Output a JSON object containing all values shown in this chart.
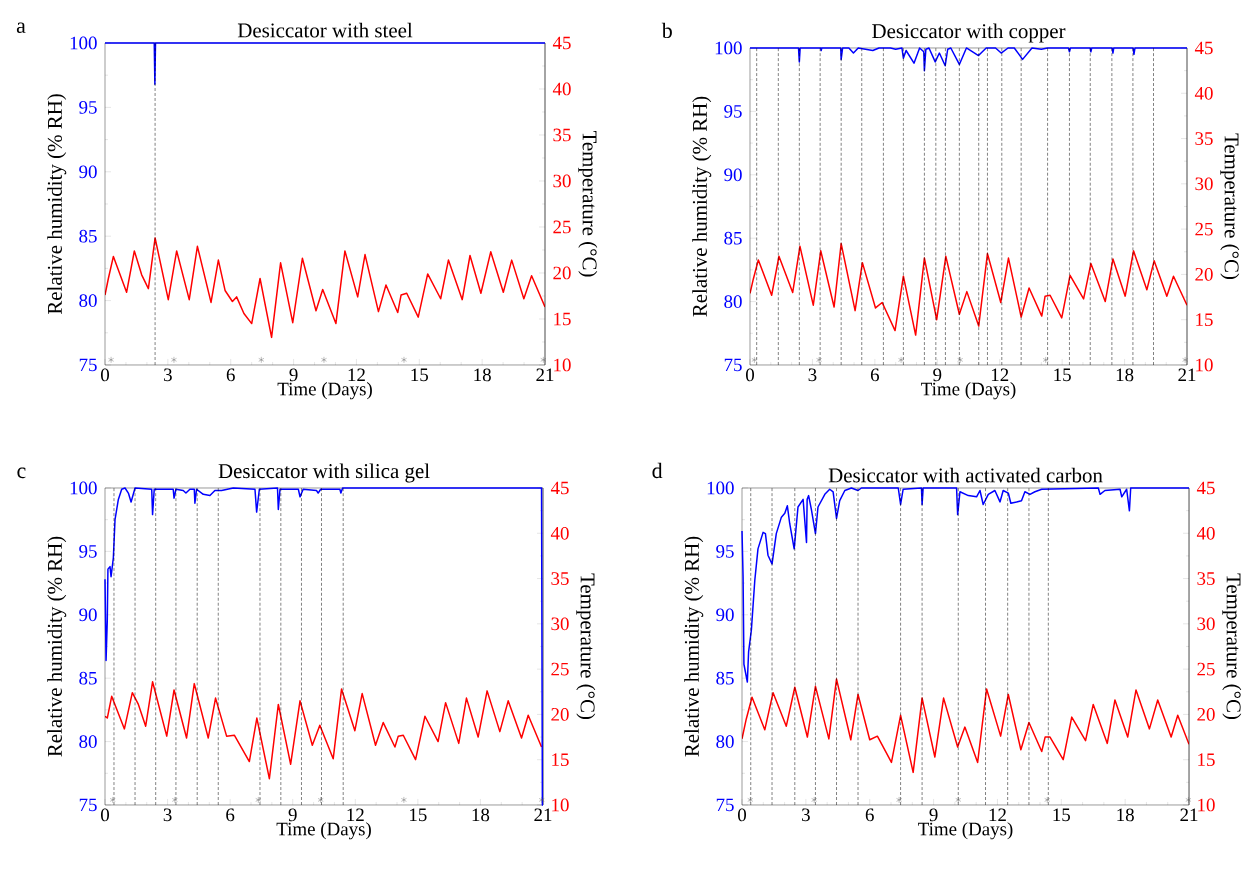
{
  "chart_data": [
    {
      "type": "line",
      "title": "Desiccator with steel",
      "xlabel": "Time (Days)",
      "ylabel": "Relative humidity (% RH)",
      "y2label": "Temperature (°C)",
      "annotations": [
        "a"
      ],
      "xlim": [
        0,
        21
      ],
      "xticks": [
        0,
        3,
        6,
        9,
        12,
        15,
        18,
        21
      ],
      "ylim": [
        75,
        100
      ],
      "yticks": [
        75,
        80,
        85,
        90,
        95,
        100
      ],
      "y2lim": [
        10,
        45
      ],
      "y2ticks": [
        10,
        15,
        20,
        25,
        30,
        35,
        40,
        45
      ],
      "series": [
        {
          "color": "#0000ff",
          "x": [
            0,
            2.35,
            2.38,
            2.41,
            21
          ],
          "values": [
            100,
            100,
            96.8,
            100,
            100
          ]
        },
        {
          "color": "#ff0000",
          "axis": "y2",
          "x": [
            0,
            0.16,
            0.4,
            1.03,
            1.4,
            1.75,
            2.07,
            2.39,
            3.02,
            3.42,
            4.02,
            4.41,
            5.06,
            5.41,
            5.73,
            6.08,
            6.28,
            6.63,
            7.0,
            7.4,
            7.95,
            8.38,
            8.96,
            9.42,
            10.07,
            10.39,
            11.02,
            11.45,
            12.06,
            12.41,
            13.05,
            13.41,
            13.97,
            14.13,
            14.4,
            14.95,
            15.4,
            16.02,
            16.39,
            17.05,
            17.42,
            17.94,
            18.41,
            19.01,
            19.41,
            19.99,
            20.36,
            21
          ],
          "values": [
            17.6,
            19.4,
            21.8,
            17.9,
            22.4,
            19.8,
            18.3,
            23.8,
            17.1,
            22.4,
            17.1,
            22.9,
            16.8,
            21.4,
            18.1,
            16.9,
            17.4,
            15.6,
            14.5,
            19.4,
            13.0,
            21.1,
            14.6,
            21.6,
            15.9,
            18.2,
            14.5,
            22.4,
            17.4,
            22.0,
            15.8,
            18.7,
            15.7,
            17.6,
            17.8,
            15.2,
            19.9,
            17.2,
            21.4,
            17.1,
            21.9,
            17.8,
            22.3,
            17.9,
            21.4,
            17.2,
            19.7,
            16.3
          ]
        },
        {
          "type": "scatter",
          "marker": "cross",
          "color": "#5b5b5b",
          "x": [
            0.29,
            3.29,
            7.46,
            10.45,
            14.27,
            20.92
          ],
          "values": [
            75.4,
            75.4,
            75.4,
            75.4,
            75.4,
            75.4
          ]
        }
      ],
      "ref_lines": [
        {
          "axis": "x",
          "value": 2.39,
          "color": "#000000",
          "line_style": "dashed"
        }
      ]
    },
    {
      "type": "line",
      "title": "Desiccator with copper",
      "xlabel": "Time (Days)",
      "ylabel": "Relative humidity (% RH)",
      "y2label": "Temperature (°C)",
      "annotations": [
        "b"
      ],
      "xlim": [
        0,
        21
      ],
      "xticks": [
        0,
        3,
        6,
        9,
        12,
        15,
        18,
        21
      ],
      "ylim": [
        75,
        100
      ],
      "yticks": [
        75,
        80,
        85,
        90,
        95,
        100
      ],
      "y2lim": [
        10,
        45
      ],
      "y2ticks": [
        10,
        15,
        20,
        25,
        30,
        35,
        40,
        45
      ],
      "series": [
        {
          "color": "#0000ff",
          "x": [
            0,
            2.33,
            2.37,
            2.41,
            3.4,
            3.42,
            3.45,
            4.36,
            4.38,
            4.45,
            4.75,
            4.97,
            5.2,
            5.9,
            6.2,
            6.75,
            7.0,
            7.3,
            7.37,
            7.5,
            7.88,
            8.15,
            8.35,
            8.38,
            8.45,
            8.6,
            8.9,
            9.1,
            9.38,
            9.5,
            9.65,
            10.06,
            10.4,
            10.98,
            11.35,
            11.8,
            12.07,
            12.4,
            12.7,
            13.1,
            13.55,
            14.0,
            14.3,
            15.3,
            15.35,
            15.4,
            16.35,
            16.38,
            16.42,
            17.4,
            17.44,
            17.48,
            18.41,
            18.45,
            18.5,
            21
          ],
          "values": [
            100,
            100,
            98.9,
            100,
            100,
            99.8,
            100,
            100,
            99.1,
            100,
            100,
            99.6,
            100,
            99.8,
            100,
            100,
            99.9,
            100,
            99.2,
            99.8,
            98.8,
            100,
            99.7,
            98.2,
            99.9,
            100,
            98.9,
            99.6,
            98.6,
            99.9,
            100,
            98.7,
            100,
            99.4,
            100,
            100,
            99.6,
            100,
            100,
            99.1,
            100,
            99.9,
            100,
            100,
            99.7,
            100,
            100,
            99.7,
            100,
            100,
            99.6,
            100,
            100,
            99.5,
            100,
            100
          ]
        },
        {
          "color": "#ff0000",
          "axis": "y2",
          "x": [
            0,
            0.16,
            0.4,
            1.04,
            1.39,
            2.05,
            2.4,
            3.04,
            3.4,
            4.04,
            4.38,
            5.05,
            5.4,
            6.03,
            6.35,
            6.97,
            7.37,
            7.96,
            8.38,
            8.97,
            9.41,
            10.06,
            10.42,
            10.99,
            11.41,
            12.05,
            12.42,
            13.03,
            13.41,
            14.02,
            14.18,
            14.42,
            14.98,
            15.38,
            16.03,
            16.38,
            17.07,
            17.44,
            18.03,
            18.43,
            19.07,
            19.42,
            20.03,
            20.35,
            21
          ],
          "values": [
            17.9,
            19.5,
            21.6,
            17.7,
            22.0,
            18.0,
            23.1,
            16.6,
            22.6,
            16.4,
            23.4,
            16.0,
            21.3,
            16.3,
            16.9,
            13.8,
            19.8,
            13.3,
            21.8,
            15.0,
            22.0,
            15.6,
            18.1,
            14.3,
            22.3,
            16.9,
            21.8,
            15.3,
            18.5,
            15.4,
            17.6,
            17.7,
            15.2,
            19.9,
            17.3,
            21.2,
            17.0,
            21.7,
            17.6,
            22.6,
            18.3,
            21.5,
            17.6,
            19.8,
            16.6
          ]
        },
        {
          "type": "scatter",
          "marker": "cross",
          "color": "#5b5b5b",
          "x": [
            0.21,
            3.32,
            7.26,
            10.1,
            14.21,
            20.91
          ],
          "values": [
            75.4,
            75.4,
            75.4,
            75.4,
            75.4,
            75.4
          ]
        }
      ],
      "ref_lines": [
        {
          "axis": "x",
          "value": 0.32,
          "color": "#000000",
          "line_style": "dashed"
        },
        {
          "axis": "x",
          "value": 1.36,
          "color": "#000000",
          "line_style": "dashed"
        },
        {
          "axis": "x",
          "value": 2.37,
          "color": "#000000",
          "line_style": "dashed"
        },
        {
          "axis": "x",
          "value": 3.37,
          "color": "#000000",
          "line_style": "dashed"
        },
        {
          "axis": "x",
          "value": 4.38,
          "color": "#000000",
          "line_style": "dashed"
        },
        {
          "axis": "x",
          "value": 5.37,
          "color": "#000000",
          "line_style": "dashed"
        },
        {
          "axis": "x",
          "value": 6.41,
          "color": "#000000",
          "line_style": "dashed"
        },
        {
          "axis": "x",
          "value": 7.37,
          "color": "#000000",
          "line_style": "dashed"
        },
        {
          "axis": "x",
          "value": 8.38,
          "color": "#000000",
          "line_style": "dashed"
        },
        {
          "axis": "x",
          "value": 8.93,
          "color": "#000000",
          "line_style": "dashed"
        },
        {
          "axis": "x",
          "value": 9.39,
          "color": "#000000",
          "line_style": "dashed"
        },
        {
          "axis": "x",
          "value": 10.06,
          "color": "#000000",
          "line_style": "dashed"
        },
        {
          "axis": "x",
          "value": 10.99,
          "color": "#000000",
          "line_style": "dashed"
        },
        {
          "axis": "x",
          "value": 11.41,
          "color": "#000000",
          "line_style": "dashed"
        },
        {
          "axis": "x",
          "value": 12.1,
          "color": "#000000",
          "line_style": "dashed"
        },
        {
          "axis": "x",
          "value": 13.03,
          "color": "#000000",
          "line_style": "dashed"
        },
        {
          "axis": "x",
          "value": 14.3,
          "color": "#000000",
          "line_style": "dashed"
        },
        {
          "axis": "x",
          "value": 15.35,
          "color": "#000000",
          "line_style": "dashed"
        },
        {
          "axis": "x",
          "value": 16.35,
          "color": "#000000",
          "line_style": "dashed"
        },
        {
          "axis": "x",
          "value": 17.39,
          "color": "#000000",
          "line_style": "dashed"
        },
        {
          "axis": "x",
          "value": 18.4,
          "color": "#000000",
          "line_style": "dashed"
        },
        {
          "axis": "x",
          "value": 19.39,
          "color": "#000000",
          "line_style": "dashed"
        }
      ]
    },
    {
      "type": "line",
      "title": "Desiccator with silica gel",
      "xlabel": "Time (Days)",
      "ylabel": "Relative humidity (% RH)",
      "y2label": "Temperature (°C)",
      "annotations": [
        "c"
      ],
      "xlim": [
        0,
        21
      ],
      "xticks": [
        0,
        3,
        6,
        9,
        12,
        15,
        18,
        21
      ],
      "ylim": [
        75,
        100
      ],
      "yticks": [
        75,
        80,
        85,
        90,
        95,
        100
      ],
      "y2lim": [
        10,
        45
      ],
      "y2ticks": [
        10,
        15,
        20,
        25,
        30,
        35,
        40,
        45
      ],
      "series": [
        {
          "color": "#0000ff",
          "x": [
            0,
            0.05,
            0.11,
            0.14,
            0.24,
            0.29,
            0.4,
            0.48,
            0.64,
            0.8,
            0.96,
            1.12,
            1.25,
            1.44,
            2.24,
            2.28,
            2.36,
            3.27,
            3.31,
            3.4,
            3.75,
            3.88,
            4.07,
            4.28,
            4.31,
            4.39,
            4.71,
            5.03,
            5.27,
            5.59,
            6.15,
            7.19,
            7.27,
            7.4,
            8.27,
            8.31,
            8.39,
            9.27,
            9.35,
            9.5,
            10.14,
            10.22,
            10.34,
            11.26,
            11.31,
            11.39,
            20.93,
            20.97,
            21
          ],
          "values": [
            92.8,
            86.4,
            89.6,
            93.6,
            93.8,
            93.0,
            94.5,
            97.5,
            99.1,
            99.9,
            100,
            99.6,
            98.9,
            100,
            99.9,
            97.9,
            99.9,
            99.9,
            99.2,
            99.9,
            99.8,
            99.6,
            99.9,
            99.9,
            98.8,
            99.9,
            99.5,
            99.4,
            99.8,
            99.8,
            100,
            99.9,
            98.1,
            99.9,
            100,
            98.3,
            99.9,
            99.9,
            99.3,
            99.9,
            99.8,
            99.6,
            99.9,
            99.9,
            99.6,
            100,
            100,
            75,
            75
          ]
        },
        {
          "color": "#ff0000",
          "axis": "y2",
          "x": [
            0,
            0.11,
            0.32,
            0.93,
            1.31,
            1.6,
            1.95,
            2.28,
            2.96,
            3.31,
            3.91,
            4.28,
            4.95,
            5.3,
            5.83,
            6.2,
            6.92,
            7.28,
            7.88,
            8.31,
            8.9,
            9.35,
            9.94,
            10.3,
            10.94,
            11.34,
            11.98,
            12.33,
            12.97,
            13.34,
            13.9,
            14.06,
            14.3,
            14.89,
            15.34,
            15.97,
            16.33,
            16.96,
            17.33,
            17.89,
            18.32,
            18.93,
            19.33,
            19.97,
            20.29,
            20.93
          ],
          "values": [
            19.8,
            19.6,
            22.0,
            18.4,
            22.4,
            21.1,
            18.7,
            23.6,
            17.6,
            22.7,
            17.4,
            23.4,
            17.4,
            21.8,
            17.6,
            17.7,
            14.8,
            19.6,
            12.9,
            21.1,
            14.5,
            21.5,
            16.6,
            18.8,
            15.1,
            22.8,
            18.2,
            22.3,
            16.6,
            19.1,
            16.4,
            17.6,
            17.7,
            15.0,
            19.8,
            17.0,
            21.3,
            16.8,
            21.8,
            17.5,
            22.6,
            18.1,
            21.5,
            17.4,
            19.9,
            16.4
          ]
        },
        {
          "type": "scatter",
          "marker": "cross",
          "color": "#5b5b5b",
          "x": [
            0.37,
            3.35,
            7.35,
            10.34,
            14.33,
            20.94
          ],
          "values": [
            75.4,
            75.4,
            75.4,
            75.4,
            75.4,
            75.4
          ]
        }
      ],
      "ref_lines": [
        {
          "axis": "x",
          "value": 0.43,
          "color": "#000000",
          "line_style": "dashed"
        },
        {
          "axis": "x",
          "value": 1.44,
          "color": "#000000",
          "line_style": "dashed"
        },
        {
          "axis": "x",
          "value": 2.43,
          "color": "#000000",
          "line_style": "dashed"
        },
        {
          "axis": "x",
          "value": 3.4,
          "color": "#000000",
          "line_style": "dashed"
        },
        {
          "axis": "x",
          "value": 4.42,
          "color": "#000000",
          "line_style": "dashed"
        },
        {
          "axis": "x",
          "value": 5.43,
          "color": "#000000",
          "line_style": "dashed"
        },
        {
          "axis": "x",
          "value": 7.43,
          "color": "#000000",
          "line_style": "dashed"
        },
        {
          "axis": "x",
          "value": 8.43,
          "color": "#000000",
          "line_style": "dashed"
        },
        {
          "axis": "x",
          "value": 9.42,
          "color": "#000000",
          "line_style": "dashed"
        },
        {
          "axis": "x",
          "value": 10.38,
          "color": "#000000",
          "line_style": "dashed"
        },
        {
          "axis": "x",
          "value": 11.42,
          "color": "#000000",
          "line_style": "dashed"
        }
      ]
    },
    {
      "type": "line",
      "title": "Desiccator with activated carbon",
      "xlabel": "Time (Days)",
      "ylabel": "Relative humidity (% RH)",
      "y2label": "Temperature (°C)",
      "annotations": [
        "d"
      ],
      "xlim": [
        0,
        21
      ],
      "xticks": [
        0,
        3,
        6,
        9,
        12,
        15,
        18,
        21
      ],
      "ylim": [
        75,
        100
      ],
      "yticks": [
        75,
        80,
        85,
        90,
        95,
        100
      ],
      "y2lim": [
        10,
        45
      ],
      "y2ticks": [
        10,
        15,
        20,
        25,
        30,
        35,
        40,
        45
      ],
      "series": [
        {
          "color": "#0000ff",
          "x": [
            0,
            0.05,
            0.09,
            0.25,
            0.31,
            0.44,
            0.6,
            0.75,
            0.99,
            1.1,
            1.22,
            1.41,
            1.61,
            1.85,
            2.01,
            2.13,
            2.24,
            2.45,
            2.63,
            2.87,
            3.03,
            3.06,
            3.13,
            3.26,
            3.45,
            3.57,
            3.89,
            4.12,
            4.28,
            4.44,
            4.59,
            4.83,
            5.14,
            5.45,
            5.61,
            7.34,
            7.45,
            7.57,
            8.43,
            8.46,
            8.51,
            10.08,
            10.13,
            10.24,
            10.63,
            11.02,
            11.18,
            11.33,
            11.57,
            11.88,
            12.12,
            12.27,
            12.51,
            12.63,
            12.9,
            13.13,
            13.29,
            13.53,
            13.76,
            14.08,
            16.74,
            16.82,
            17.05,
            17.76,
            17.84,
            18.07,
            18.2,
            18.26,
            21
          ],
          "values": [
            96.6,
            93.0,
            86.1,
            84.7,
            87.1,
            88.8,
            92.7,
            95.2,
            96.5,
            96.4,
            94.7,
            94.0,
            96.4,
            97.7,
            98.0,
            98.6,
            97.2,
            95.2,
            98.5,
            99.1,
            95.7,
            99.1,
            99.4,
            98.3,
            96.4,
            98.5,
            99.5,
            99.9,
            99.7,
            97.6,
            99.0,
            99.8,
            100,
            99.8,
            100,
            100,
            98.7,
            99.9,
            100,
            98.7,
            100,
            100,
            97.9,
            99.7,
            99.4,
            99.3,
            99.8,
            98.7,
            99.5,
            99.8,
            98.9,
            99.8,
            99.6,
            98.8,
            98.9,
            99.0,
            99.7,
            99.5,
            99.7,
            99.9,
            100,
            99.5,
            99.8,
            99.9,
            99.3,
            99.9,
            98.2,
            100,
            100
          ]
        },
        {
          "color": "#ff0000",
          "axis": "y2",
          "x": [
            0,
            0.2,
            0.47,
            1.07,
            1.46,
            2.08,
            2.48,
            3.07,
            3.45,
            4.08,
            4.44,
            5.11,
            5.45,
            6.0,
            6.36,
            7.02,
            7.45,
            8.04,
            8.46,
            9.06,
            9.47,
            10.13,
            10.47,
            11.07,
            11.49,
            12.15,
            12.51,
            13.1,
            13.48,
            14.08,
            14.24,
            14.47,
            15.09,
            15.49,
            16.14,
            16.5,
            17.16,
            17.52,
            18.12,
            18.51,
            19.14,
            19.53,
            20.16,
            20.47,
            21
          ],
          "values": [
            17.3,
            19.5,
            21.9,
            18.3,
            22.4,
            18.7,
            23.0,
            17.5,
            23.1,
            17.3,
            23.9,
            17.2,
            22.2,
            17.2,
            17.6,
            14.7,
            19.9,
            13.6,
            21.8,
            15.3,
            21.8,
            16.4,
            18.6,
            14.7,
            22.8,
            17.6,
            22.2,
            16.1,
            19.1,
            15.9,
            17.5,
            17.5,
            15.0,
            19.7,
            17.1,
            21.1,
            16.8,
            21.6,
            17.5,
            22.7,
            18.4,
            21.6,
            17.5,
            19.9,
            16.7
          ]
        },
        {
          "type": "scatter",
          "marker": "cross",
          "color": "#5b5b5b",
          "x": [
            0.39,
            3.39,
            7.38,
            10.16,
            14.34,
            20.97
          ],
          "values": [
            75.4,
            75.4,
            75.4,
            75.4,
            75.4,
            75.4
          ]
        }
      ],
      "ref_lines": [
        {
          "axis": "x",
          "value": 0.41,
          "color": "#000000",
          "line_style": "dashed"
        },
        {
          "axis": "x",
          "value": 1.41,
          "color": "#000000",
          "line_style": "dashed"
        },
        {
          "axis": "x",
          "value": 2.48,
          "color": "#000000",
          "line_style": "dashed"
        },
        {
          "axis": "x",
          "value": 3.45,
          "color": "#000000",
          "line_style": "dashed"
        },
        {
          "axis": "x",
          "value": 4.44,
          "color": "#000000",
          "line_style": "dashed"
        },
        {
          "axis": "x",
          "value": 5.45,
          "color": "#000000",
          "line_style": "dashed"
        },
        {
          "axis": "x",
          "value": 7.45,
          "color": "#000000",
          "line_style": "dashed"
        },
        {
          "axis": "x",
          "value": 8.46,
          "color": "#000000",
          "line_style": "dashed"
        },
        {
          "axis": "x",
          "value": 10.16,
          "color": "#000000",
          "line_style": "dashed"
        },
        {
          "axis": "x",
          "value": 11.44,
          "color": "#000000",
          "line_style": "dashed"
        },
        {
          "axis": "x",
          "value": 12.48,
          "color": "#000000",
          "line_style": "dashed"
        },
        {
          "axis": "x",
          "value": 13.48,
          "color": "#000000",
          "line_style": "dashed"
        },
        {
          "axis": "x",
          "value": 14.39,
          "color": "#000000",
          "line_style": "dashed"
        }
      ]
    }
  ]
}
